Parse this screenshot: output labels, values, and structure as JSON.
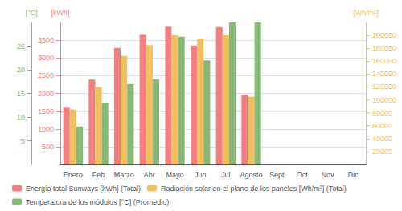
{
  "chart_data": {
    "type": "bar",
    "categories": [
      "Enero",
      "Feb",
      "Marzo",
      "Abr",
      "Mayo",
      "Jun",
      "Jul",
      "Agosto",
      "Sept",
      "Oct",
      "Nov",
      "Dic"
    ],
    "series": [
      {
        "name": "Energía total Sunways [kWh] (Total)",
        "color": "#f08080",
        "axis": "y",
        "values": [
          1620,
          2390,
          3280,
          3650,
          3880,
          3350,
          3870,
          1960,
          0,
          0,
          0,
          0
        ]
      },
      {
        "name": "Radiación solar en el plano de los paneles [Wh/m²] (Total)",
        "color": "#f0c060",
        "axis": "y2",
        "values": [
          85000,
          120000,
          168000,
          185000,
          200000,
          195000,
          200000,
          105000,
          0,
          0,
          0,
          0
        ]
      },
      {
        "name": "Temperatura de los módulos [°C] (Promedio)",
        "color": "#88b878",
        "axis": "y3",
        "values": [
          8,
          13,
          17,
          18,
          27,
          22,
          30,
          30,
          0,
          0,
          0,
          0
        ]
      }
    ],
    "ylabel": "[kWh]",
    "y2label": "[Wh/m²]",
    "y3label": "[°C]",
    "ylim": [
      0,
      4000
    ],
    "yticks": [
      500,
      1000,
      1500,
      2000,
      2500,
      3000,
      3500
    ],
    "y2lim": [
      0,
      220000
    ],
    "y2ticks": [
      20000,
      40000,
      60000,
      80000,
      100000,
      120000,
      140000,
      160000,
      180000,
      200000
    ],
    "y3lim": [
      0,
      30
    ],
    "y3ticks": [
      5,
      10,
      15,
      20,
      25
    ],
    "grid": true,
    "legend": "bottom"
  }
}
